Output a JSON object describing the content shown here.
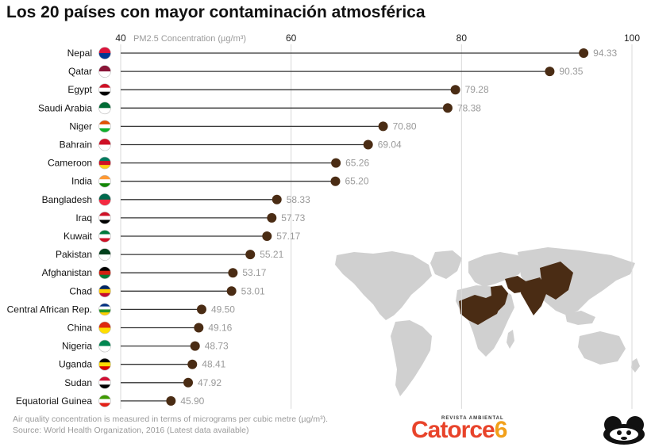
{
  "title": "Los 20 países con mayor contaminación atmosférica",
  "chart_data": {
    "type": "lollipop",
    "xlabel": "PM2.5 Concentration (µg/m³)",
    "xlim": [
      40,
      100
    ],
    "xticks": [
      40,
      60,
      80,
      100
    ],
    "grid": true,
    "categories": [
      "Nepal",
      "Qatar",
      "Egypt",
      "Saudi Arabia",
      "Niger",
      "Bahrain",
      "Cameroon",
      "India",
      "Bangladesh",
      "Iraq",
      "Kuwait",
      "Pakistan",
      "Afghanistan",
      "Chad",
      "Central African Rep.",
      "China",
      "Nigeria",
      "Uganda",
      "Sudan",
      "Equatorial Guinea"
    ],
    "values": [
      94.33,
      90.35,
      79.28,
      78.38,
      70.8,
      69.04,
      65.26,
      65.2,
      58.33,
      57.73,
      57.17,
      55.21,
      53.17,
      53.01,
      49.5,
      49.16,
      48.73,
      48.41,
      47.92,
      45.9
    ],
    "value_labels": [
      "94.33",
      "90.35",
      "79.28",
      "78.38",
      "70.80",
      "69.04",
      "65.26",
      "65.20",
      "58.33",
      "57.73",
      "57.17",
      "55.21",
      "53.17",
      "53.01",
      "49.50",
      "49.16",
      "48.73",
      "48.41",
      "47.92",
      "45.90"
    ],
    "colors": {
      "dot": "#4a2c14",
      "line": "#333333",
      "value_label": "#9a9a9a",
      "grid": "#d9d9d9",
      "map_land": "#d0d0d0",
      "map_highlight": "#4a2c14"
    }
  },
  "footer": {
    "note": "Air quality concentration is measured in terms of micrograms per cubic metre (µg/m³).",
    "source": "Source: World Health Organization, 2016 (Latest data available)"
  },
  "brand": {
    "tagline": "REVISTA AMBIENTAL",
    "name_word": "Catorce",
    "name_num": "6",
    "colors": {
      "word": "#e8432a",
      "num": "#f2a01a"
    }
  },
  "flags": [
    {
      "icon": "nepal-flag-icon",
      "colors": [
        "#dc143c",
        "#003893"
      ]
    },
    {
      "icon": "qatar-flag-icon",
      "colors": [
        "#8a1538",
        "#ffffff"
      ]
    },
    {
      "icon": "egypt-flag-icon",
      "colors": [
        "#ce1126",
        "#ffffff",
        "#000000"
      ]
    },
    {
      "icon": "saudi-arabia-flag-icon",
      "colors": [
        "#006c35",
        "#ffffff"
      ]
    },
    {
      "icon": "niger-flag-icon",
      "colors": [
        "#e05206",
        "#ffffff",
        "#0db02b"
      ]
    },
    {
      "icon": "bahrain-flag-icon",
      "colors": [
        "#ce1126",
        "#ffffff"
      ]
    },
    {
      "icon": "cameroon-flag-icon",
      "colors": [
        "#007a5e",
        "#ce1126",
        "#fcd116"
      ]
    },
    {
      "icon": "india-flag-icon",
      "colors": [
        "#ff9933",
        "#ffffff",
        "#138808"
      ]
    },
    {
      "icon": "bangladesh-flag-icon",
      "colors": [
        "#006a4e",
        "#f42a41"
      ]
    },
    {
      "icon": "iraq-flag-icon",
      "colors": [
        "#ce1126",
        "#ffffff",
        "#000000"
      ]
    },
    {
      "icon": "kuwait-flag-icon",
      "colors": [
        "#007a3d",
        "#ffffff",
        "#ce1126"
      ]
    },
    {
      "icon": "pakistan-flag-icon",
      "colors": [
        "#01411c",
        "#ffffff"
      ]
    },
    {
      "icon": "afghanistan-flag-icon",
      "colors": [
        "#000000",
        "#d32011",
        "#007a36"
      ]
    },
    {
      "icon": "chad-flag-icon",
      "colors": [
        "#002664",
        "#fecb00",
        "#c60c30"
      ]
    },
    {
      "icon": "central-african-rep-flag-icon",
      "colors": [
        "#003082",
        "#ffffff",
        "#289728",
        "#ffce00"
      ]
    },
    {
      "icon": "china-flag-icon",
      "colors": [
        "#de2910",
        "#ffde00"
      ]
    },
    {
      "icon": "nigeria-flag-icon",
      "colors": [
        "#008751",
        "#ffffff"
      ]
    },
    {
      "icon": "uganda-flag-icon",
      "colors": [
        "#000000",
        "#fcdc04",
        "#d90000"
      ]
    },
    {
      "icon": "sudan-flag-icon",
      "colors": [
        "#d21034",
        "#ffffff",
        "#000000"
      ]
    },
    {
      "icon": "equatorial-guinea-flag-icon",
      "colors": [
        "#3e9a00",
        "#ffffff",
        "#e32118"
      ]
    }
  ]
}
